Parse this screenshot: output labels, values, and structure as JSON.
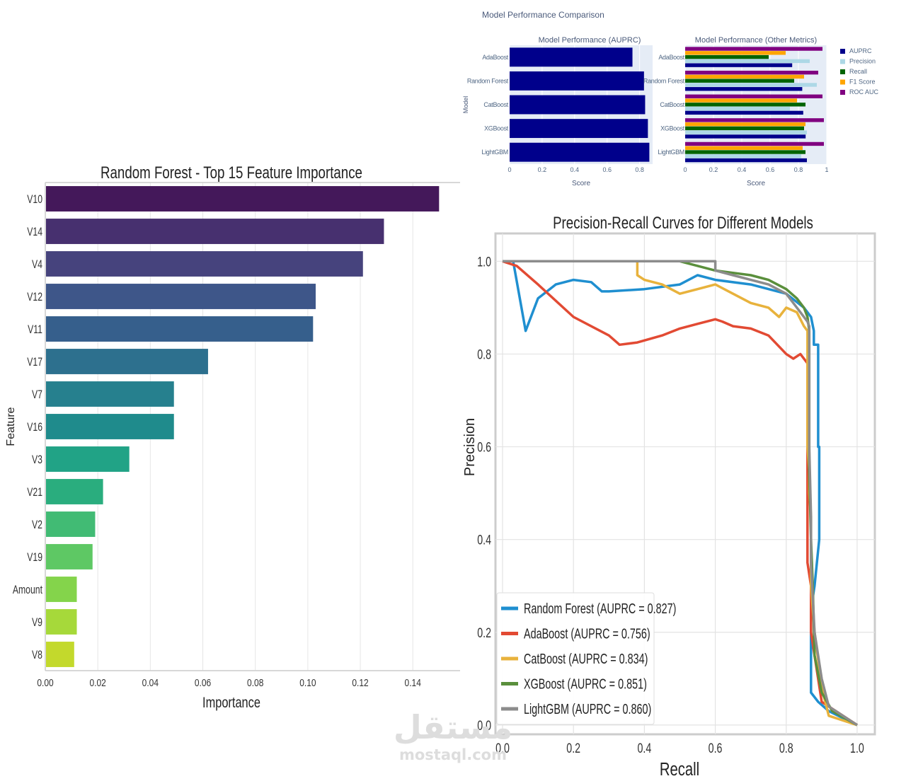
{
  "watermark": {
    "arabic": "مستقل",
    "latin": "mostaql.com"
  },
  "chart_data": [
    {
      "type": "bar",
      "orientation": "horizontal",
      "title": "Random Forest - Top 15 Feature Importance",
      "xlabel": "Importance",
      "ylabel": "Feature",
      "xlim": [
        0,
        0.158
      ],
      "xticks": [
        "0.00",
        "0.02",
        "0.04",
        "0.06",
        "0.08",
        "0.10",
        "0.12",
        "0.14"
      ],
      "categories": [
        "V10",
        "V14",
        "V4",
        "V12",
        "V11",
        "V17",
        "V7",
        "V16",
        "V3",
        "V21",
        "V2",
        "V19",
        "Amount",
        "V9",
        "V8"
      ],
      "values": [
        0.15,
        0.129,
        0.121,
        0.103,
        0.102,
        0.062,
        0.049,
        0.049,
        0.032,
        0.022,
        0.019,
        0.018,
        0.012,
        0.012,
        0.011
      ],
      "colors": [
        "#44185a",
        "#47306f",
        "#46437d",
        "#3e5689",
        "#365f8c",
        "#2d708e",
        "#26808e",
        "#1f8b8c",
        "#21a386",
        "#2aad7e",
        "#41bb74",
        "#5ec864",
        "#84d44b",
        "#a6d93a",
        "#c3d92c"
      ],
      "grid": true
    },
    {
      "type": "bar",
      "orientation": "horizontal",
      "title": "Model Performance (AUPRC)",
      "suptitle": "Model Performance Comparison",
      "xlabel": "Score",
      "ylabel": "Model",
      "xlim": [
        0,
        0.88
      ],
      "xticks": [
        "0",
        "0.2",
        "0.4",
        "0.6",
        "0.8"
      ],
      "categories": [
        "AdaBoost",
        "Random Forest",
        "CatBoost",
        "XGBoost",
        "LightGBM"
      ],
      "values": [
        0.756,
        0.827,
        0.834,
        0.851,
        0.86
      ],
      "color": "#00008b"
    },
    {
      "type": "bar",
      "orientation": "horizontal",
      "title": "Model Performance (Other Metrics)",
      "xlabel": "Score",
      "xlim": [
        0,
        1
      ],
      "xticks": [
        "0",
        "0.2",
        "0.4",
        "0.6",
        "0.8",
        "1"
      ],
      "categories": [
        "AdaBoost",
        "Random Forest",
        "CatBoost",
        "XGBoost",
        "LightGBM"
      ],
      "series": [
        {
          "name": "AUPRC",
          "color": "#00008b",
          "values": [
            0.756,
            0.827,
            0.834,
            0.851,
            0.86
          ]
        },
        {
          "name": "Precision",
          "color": "#add8e6",
          "values": [
            0.88,
            0.93,
            0.74,
            0.86,
            0.82
          ]
        },
        {
          "name": "Recall",
          "color": "#006400",
          "values": [
            0.59,
            0.77,
            0.85,
            0.84,
            0.85
          ]
        },
        {
          "name": "F1 Score",
          "color": "#ffa500",
          "values": [
            0.71,
            0.84,
            0.79,
            0.85,
            0.83
          ]
        },
        {
          "name": "ROC AUC",
          "color": "#800080",
          "values": [
            0.97,
            0.94,
            0.97,
            0.98,
            0.98
          ]
        }
      ]
    },
    {
      "type": "line",
      "title": "Precision-Recall Curves for Different Models",
      "xlabel": "Recall",
      "ylabel": "Precision",
      "xlim": [
        -0.02,
        1.05
      ],
      "ylim": [
        -0.02,
        1.06
      ],
      "xticks": [
        "0.0",
        "0.2",
        "0.4",
        "0.6",
        "0.8",
        "1.0"
      ],
      "yticks": [
        "0.0",
        "0.2",
        "0.4",
        "0.6",
        "0.8",
        "1.0"
      ],
      "legend_position": "lower-left",
      "grid": true,
      "series": [
        {
          "name": "Random Forest (AUPRC = 0.827)",
          "color": "#1f8fd0",
          "x": [
            0,
            0.03,
            0.065,
            0.1,
            0.15,
            0.2,
            0.25,
            0.28,
            0.3,
            0.4,
            0.5,
            0.55,
            0.6,
            0.7,
            0.8,
            0.85,
            0.87,
            0.878,
            0.878,
            0.89,
            0.89,
            0.893,
            0.893,
            0.88,
            0.87,
            0.87,
            0.89,
            0.92,
            1.0
          ],
          "y": [
            1.0,
            1.0,
            0.85,
            0.92,
            0.95,
            0.96,
            0.955,
            0.935,
            0.935,
            0.94,
            0.95,
            0.97,
            0.96,
            0.95,
            0.93,
            0.9,
            0.88,
            0.85,
            0.82,
            0.82,
            0.6,
            0.6,
            0.4,
            0.3,
            0.25,
            0.07,
            0.05,
            0.03,
            0.0
          ]
        },
        {
          "name": "AdaBoost (AUPRC = 0.756)",
          "color": "#e24a33",
          "x": [
            0,
            0.04,
            0.1,
            0.2,
            0.3,
            0.33,
            0.38,
            0.45,
            0.5,
            0.55,
            0.6,
            0.62,
            0.65,
            0.7,
            0.75,
            0.8,
            0.82,
            0.84,
            0.86,
            0.86,
            0.87,
            0.87,
            0.88,
            0.9,
            1.0
          ],
          "y": [
            1.0,
            0.99,
            0.95,
            0.88,
            0.84,
            0.82,
            0.825,
            0.84,
            0.855,
            0.865,
            0.875,
            0.87,
            0.86,
            0.855,
            0.84,
            0.8,
            0.79,
            0.8,
            0.78,
            0.35,
            0.3,
            0.2,
            0.15,
            0.05,
            0.0
          ]
        },
        {
          "name": "CatBoost (AUPRC = 0.834)",
          "color": "#e8b23c",
          "x": [
            0,
            0.3,
            0.38,
            0.38,
            0.4,
            0.45,
            0.5,
            0.55,
            0.6,
            0.65,
            0.7,
            0.75,
            0.78,
            0.8,
            0.83,
            0.85,
            0.86,
            0.86,
            0.865,
            0.865,
            0.87,
            0.87,
            0.88,
            0.9,
            0.92,
            1.0
          ],
          "y": [
            1.0,
            1.0,
            1.0,
            0.97,
            0.96,
            0.95,
            0.93,
            0.94,
            0.95,
            0.93,
            0.91,
            0.9,
            0.88,
            0.9,
            0.89,
            0.86,
            0.85,
            0.6,
            0.55,
            0.5,
            0.45,
            0.3,
            0.2,
            0.08,
            0.02,
            0.0
          ]
        },
        {
          "name": "XGBoost (AUPRC = 0.851)",
          "color": "#5a8f3c",
          "x": [
            0,
            0.5,
            0.6,
            0.65,
            0.7,
            0.75,
            0.8,
            0.83,
            0.85,
            0.86,
            0.865,
            0.865,
            0.87,
            0.875,
            0.88,
            0.9,
            0.93,
            1.0
          ],
          "y": [
            1.0,
            1.0,
            0.98,
            0.975,
            0.97,
            0.96,
            0.94,
            0.92,
            0.9,
            0.88,
            0.85,
            0.55,
            0.4,
            0.3,
            0.15,
            0.07,
            0.03,
            0.0
          ]
        },
        {
          "name": "LightGBM (AUPRC = 0.860)",
          "color": "#8c8c8c",
          "x": [
            0,
            0.6,
            0.6,
            0.65,
            0.7,
            0.75,
            0.8,
            0.82,
            0.84,
            0.86,
            0.865,
            0.865,
            0.87,
            0.87,
            0.88,
            0.9,
            0.92,
            1.0
          ],
          "y": [
            1.0,
            1.0,
            0.98,
            0.97,
            0.96,
            0.95,
            0.93,
            0.91,
            0.89,
            0.87,
            0.86,
            0.6,
            0.45,
            0.35,
            0.2,
            0.1,
            0.04,
            0.0
          ]
        }
      ]
    }
  ]
}
